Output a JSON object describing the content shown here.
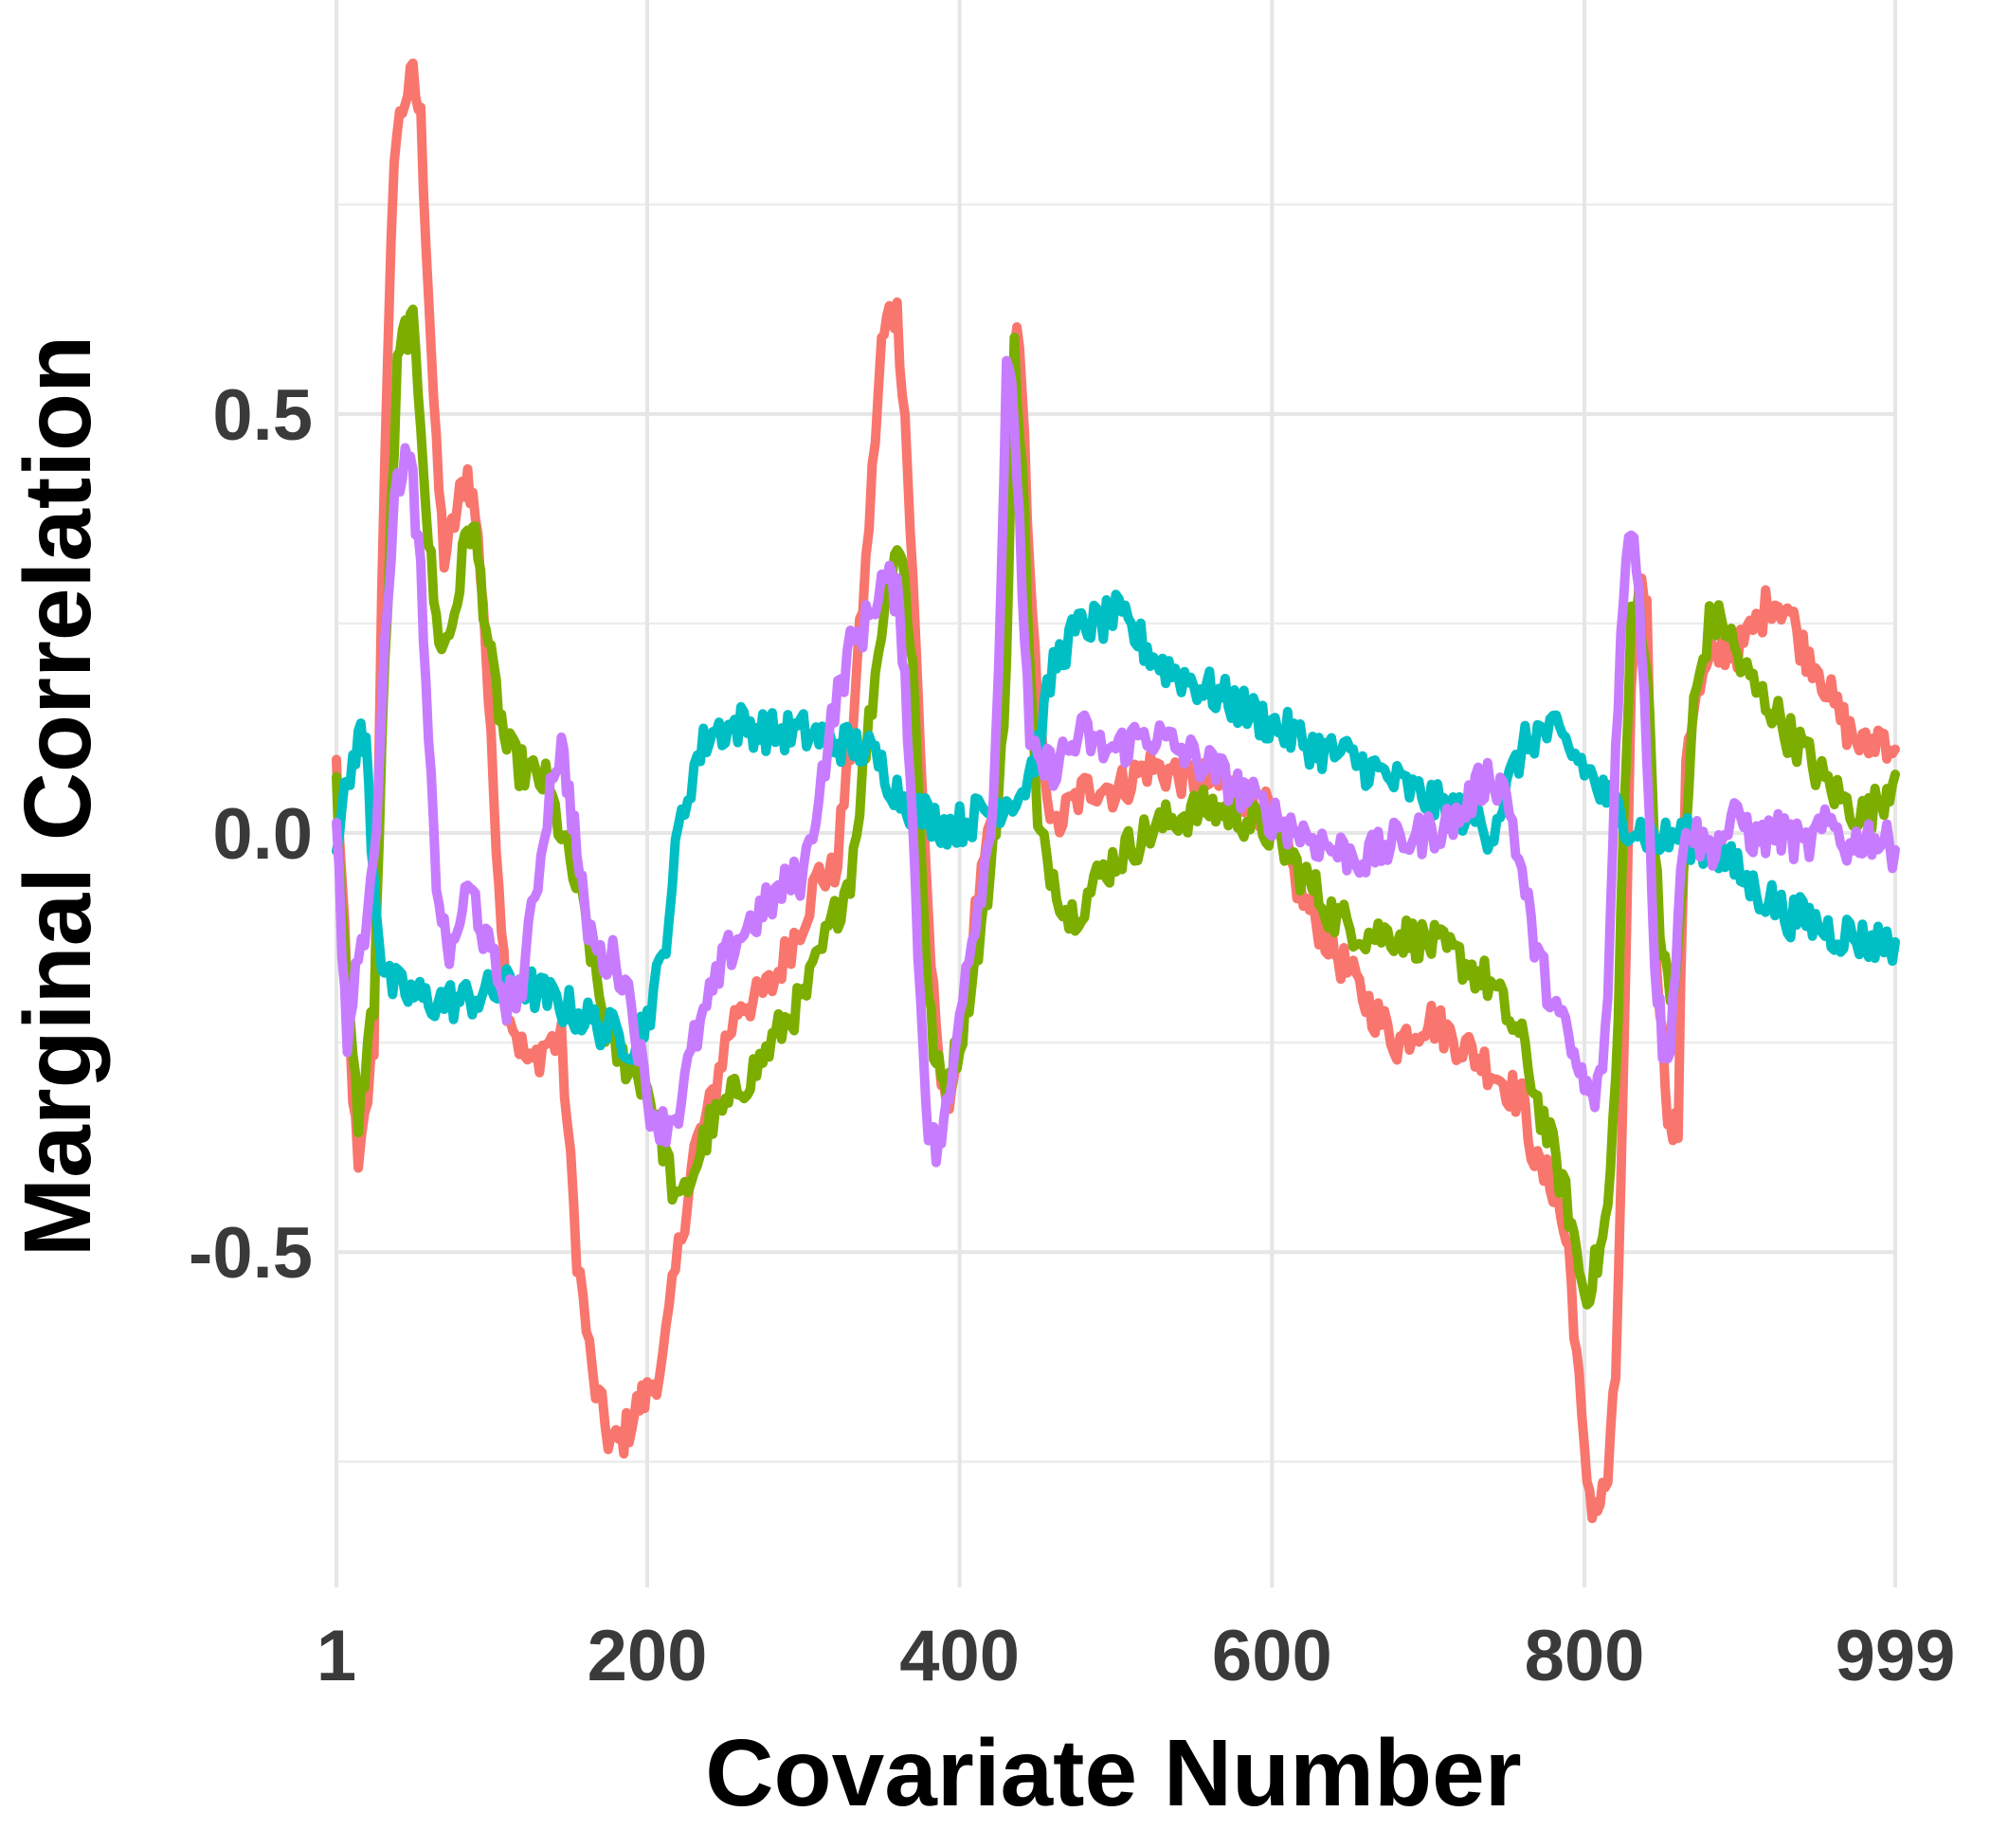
{
  "chart_data": {
    "type": "line",
    "xlabel": "Covariate Number",
    "ylabel": "Marginal Correlation",
    "xlim": [
      1,
      999
    ],
    "ylim": [
      -0.9,
      0.96
    ],
    "x_ticks": [
      {
        "value": 1,
        "label": "1"
      },
      {
        "value": 200,
        "label": "200"
      },
      {
        "value": 400,
        "label": "400"
      },
      {
        "value": 600,
        "label": "600"
      },
      {
        "value": 800,
        "label": "800"
      },
      {
        "value": 999,
        "label": "999"
      }
    ],
    "x_minor_gridlines": [],
    "y_ticks": [
      {
        "value": -0.5,
        "label": "-0.5"
      },
      {
        "value": 0.0,
        "label": "0.0"
      },
      {
        "value": 0.5,
        "label": "0.5"
      }
    ],
    "y_minor_gridlines": [
      -0.75,
      -0.25,
      0.25,
      0.75
    ],
    "grid": true,
    "legend": "none",
    "series": [
      {
        "color": "#F8766D",
        "x": [
          1,
          8,
          15,
          25,
          30,
          38,
          45,
          50,
          55,
          60,
          65,
          70,
          75,
          80,
          85,
          90,
          95,
          100,
          105,
          110,
          118,
          125,
          135,
          145,
          155,
          165,
          175,
          180,
          185,
          190,
          195,
          200,
          210,
          220,
          230,
          240,
          250,
          260,
          270,
          280,
          290,
          300,
          310,
          320,
          330,
          340,
          350,
          355,
          360,
          365,
          370,
          375,
          380,
          385,
          390,
          395,
          400,
          410,
          420,
          425,
          430,
          435,
          440,
          445,
          450,
          460,
          470,
          480,
          490,
          500,
          520,
          540,
          560,
          580,
          600,
          620,
          640,
          660,
          680,
          700,
          720,
          740,
          760,
          770,
          780,
          785,
          790,
          795,
          800,
          805,
          810,
          815,
          820,
          825,
          830,
          835,
          840,
          845,
          850,
          855,
          860,
          865,
          870,
          880,
          890,
          900,
          910,
          920,
          930,
          940,
          950,
          960,
          970,
          980,
          990,
          999
        ],
        "y": [
          0.08,
          -0.2,
          -0.41,
          -0.25,
          0.3,
          0.82,
          0.88,
          0.9,
          0.85,
          0.65,
          0.45,
          0.33,
          0.36,
          0.4,
          0.43,
          0.38,
          0.28,
          0.1,
          -0.05,
          -0.2,
          -0.25,
          -0.28,
          -0.25,
          -0.25,
          -0.5,
          -0.65,
          -0.72,
          -0.73,
          -0.72,
          -0.7,
          -0.68,
          -0.67,
          -0.63,
          -0.5,
          -0.38,
          -0.33,
          -0.25,
          -0.2,
          -0.2,
          -0.18,
          -0.14,
          -0.1,
          -0.05,
          -0.05,
          0.1,
          0.32,
          0.58,
          0.62,
          0.62,
          0.5,
          0.3,
          0.1,
          -0.1,
          -0.25,
          -0.32,
          -0.3,
          -0.25,
          -0.1,
          0.0,
          0.1,
          0.3,
          0.6,
          0.55,
          0.3,
          0.15,
          0.0,
          0.03,
          0.05,
          0.06,
          0.05,
          0.08,
          0.07,
          0.06,
          0.05,
          0.02,
          -0.08,
          -0.14,
          -0.2,
          -0.25,
          -0.22,
          -0.25,
          -0.28,
          -0.32,
          -0.4,
          -0.42,
          -0.46,
          -0.5,
          -0.62,
          -0.75,
          -0.8,
          -0.8,
          -0.77,
          -0.65,
          -0.3,
          0.15,
          0.3,
          0.28,
          -0.1,
          -0.25,
          -0.36,
          -0.35,
          0.1,
          0.15,
          0.2,
          0.22,
          0.22,
          0.25,
          0.28,
          0.27,
          0.22,
          0.2,
          0.15,
          0.12,
          0.1,
          0.12,
          0.1
        ]
      },
      {
        "color": "#7CAE00",
        "x": [
          1,
          8,
          15,
          25,
          32,
          40,
          45,
          50,
          55,
          60,
          65,
          70,
          75,
          80,
          85,
          90,
          95,
          100,
          105,
          110,
          118,
          125,
          135,
          145,
          160,
          175,
          190,
          200,
          210,
          220,
          230,
          240,
          250,
          260,
          270,
          280,
          290,
          300,
          310,
          320,
          330,
          340,
          350,
          355,
          360,
          365,
          370,
          375,
          380,
          385,
          390,
          395,
          400,
          410,
          420,
          425,
          430,
          435,
          440,
          445,
          450,
          460,
          470,
          480,
          490,
          500,
          520,
          540,
          560,
          580,
          600,
          620,
          640,
          660,
          680,
          700,
          720,
          740,
          760,
          770,
          780,
          790,
          795,
          800,
          805,
          810,
          815,
          820,
          825,
          830,
          835,
          840,
          845,
          850,
          855,
          860,
          865,
          870,
          880,
          890,
          900,
          910,
          920,
          930,
          940,
          950,
          960,
          970,
          980,
          990,
          999
        ],
        "y": [
          0.05,
          -0.2,
          -0.34,
          -0.2,
          0.2,
          0.55,
          0.6,
          0.6,
          0.5,
          0.35,
          0.25,
          0.22,
          0.25,
          0.3,
          0.37,
          0.35,
          0.28,
          0.2,
          0.15,
          0.1,
          0.08,
          0.07,
          0.06,
          0.0,
          -0.1,
          -0.25,
          -0.28,
          -0.3,
          -0.37,
          -0.45,
          -0.4,
          -0.35,
          -0.33,
          -0.3,
          -0.28,
          -0.25,
          -0.22,
          -0.2,
          -0.15,
          -0.1,
          -0.05,
          0.1,
          0.25,
          0.3,
          0.35,
          0.3,
          0.2,
          0.0,
          -0.2,
          -0.28,
          -0.3,
          -0.28,
          -0.25,
          -0.15,
          -0.05,
          0.05,
          0.2,
          0.58,
          0.45,
          0.2,
          0.0,
          -0.05,
          -0.1,
          -0.08,
          -0.05,
          -0.03,
          0.0,
          0.02,
          0.03,
          0.02,
          0.0,
          -0.05,
          -0.1,
          -0.12,
          -0.12,
          -0.13,
          -0.15,
          -0.18,
          -0.25,
          -0.32,
          -0.38,
          -0.45,
          -0.5,
          -0.55,
          -0.53,
          -0.5,
          -0.45,
          -0.3,
          0.0,
          0.25,
          0.28,
          0.2,
          0.0,
          -0.15,
          -0.2,
          -0.15,
          0.0,
          0.15,
          0.25,
          0.25,
          0.2,
          0.17,
          0.15,
          0.12,
          0.1,
          0.07,
          0.05,
          0.03,
          0.02,
          0.04,
          0.07
        ]
      },
      {
        "color": "#00BFC4",
        "x": [
          1,
          8,
          15,
          20,
          25,
          30,
          35,
          45,
          60,
          80,
          100,
          120,
          140,
          160,
          180,
          190,
          200,
          210,
          220,
          230,
          240,
          260,
          280,
          300,
          320,
          340,
          350,
          360,
          370,
          380,
          390,
          400,
          410,
          420,
          430,
          440,
          450,
          460,
          470,
          480,
          490,
          500,
          510,
          520,
          530,
          550,
          570,
          590,
          610,
          630,
          650,
          670,
          690,
          710,
          730,
          740,
          750,
          760,
          770,
          780,
          790,
          800,
          810,
          820,
          830,
          840,
          850,
          860,
          870,
          880,
          890,
          900,
          910,
          920,
          930,
          940,
          950,
          960,
          970,
          980,
          990,
          999
        ],
        "y": [
          0.0,
          0.05,
          0.12,
          0.1,
          -0.05,
          -0.15,
          -0.18,
          -0.19,
          -0.2,
          -0.2,
          -0.19,
          -0.18,
          -0.2,
          -0.22,
          -0.24,
          -0.25,
          -0.22,
          -0.15,
          0.0,
          0.08,
          0.12,
          0.13,
          0.12,
          0.12,
          0.11,
          0.1,
          0.08,
          0.05,
          0.03,
          0.02,
          0.01,
          0.01,
          0.02,
          0.03,
          0.04,
          0.05,
          0.1,
          0.2,
          0.23,
          0.25,
          0.25,
          0.26,
          0.24,
          0.22,
          0.2,
          0.18,
          0.16,
          0.14,
          0.12,
          0.1,
          0.09,
          0.07,
          0.05,
          0.03,
          0.02,
          0.0,
          0.05,
          0.1,
          0.12,
          0.12,
          0.1,
          0.08,
          0.05,
          0.03,
          0.01,
          0.0,
          -0.01,
          0.0,
          -0.01,
          -0.02,
          -0.03,
          -0.05,
          -0.07,
          -0.08,
          -0.1,
          -0.1,
          -0.11,
          -0.12,
          -0.12,
          -0.13,
          -0.13,
          -0.13
        ]
      },
      {
        "color": "#C77CFF",
        "x": [
          1,
          8,
          15,
          25,
          32,
          40,
          45,
          50,
          55,
          60,
          65,
          70,
          75,
          80,
          85,
          90,
          95,
          100,
          110,
          120,
          130,
          140,
          145,
          150,
          155,
          160,
          170,
          180,
          190,
          200,
          210,
          220,
          230,
          240,
          250,
          260,
          270,
          280,
          290,
          300,
          310,
          320,
          330,
          340,
          350,
          355,
          360,
          365,
          370,
          375,
          380,
          385,
          390,
          395,
          400,
          410,
          420,
          425,
          430,
          435,
          440,
          445,
          450,
          460,
          470,
          480,
          490,
          500,
          520,
          540,
          560,
          580,
          600,
          620,
          640,
          660,
          680,
          700,
          720,
          730,
          740,
          750,
          760,
          770,
          780,
          790,
          795,
          800,
          805,
          810,
          815,
          820,
          825,
          830,
          835,
          840,
          845,
          850,
          855,
          860,
          865,
          870,
          880,
          890,
          900,
          910,
          920,
          930,
          940,
          950,
          960,
          970,
          980,
          990,
          999
        ],
        "y": [
          0.0,
          -0.25,
          -0.15,
          -0.05,
          0.25,
          0.42,
          0.45,
          0.42,
          0.3,
          0.1,
          -0.05,
          -0.12,
          -0.15,
          -0.1,
          -0.07,
          -0.08,
          -0.12,
          -0.15,
          -0.2,
          -0.18,
          -0.05,
          0.08,
          0.1,
          0.05,
          -0.02,
          -0.1,
          -0.15,
          -0.15,
          -0.2,
          -0.32,
          -0.35,
          -0.33,
          -0.25,
          -0.2,
          -0.15,
          -0.12,
          -0.1,
          -0.08,
          -0.06,
          -0.05,
          0.05,
          0.15,
          0.22,
          0.25,
          0.3,
          0.3,
          0.28,
          0.2,
          0.0,
          -0.2,
          -0.35,
          -0.38,
          -0.35,
          -0.3,
          -0.2,
          -0.1,
          0.0,
          0.2,
          0.55,
          0.5,
          0.3,
          0.1,
          0.08,
          0.08,
          0.1,
          0.12,
          0.1,
          0.1,
          0.12,
          0.1,
          0.08,
          0.05,
          0.02,
          0.0,
          -0.02,
          -0.03,
          -0.01,
          0.0,
          0.02,
          0.05,
          0.07,
          0.05,
          -0.05,
          -0.15,
          -0.2,
          -0.25,
          -0.28,
          -0.3,
          -0.32,
          -0.3,
          -0.2,
          0.1,
          0.3,
          0.36,
          0.3,
          0.1,
          -0.15,
          -0.25,
          -0.25,
          -0.1,
          0.02,
          0.0,
          -0.02,
          0.0,
          0.02,
          -0.01,
          0.0,
          0.0,
          -0.02,
          0.0,
          0.01,
          -0.02,
          0.0,
          -0.01,
          -0.02
        ]
      }
    ]
  }
}
